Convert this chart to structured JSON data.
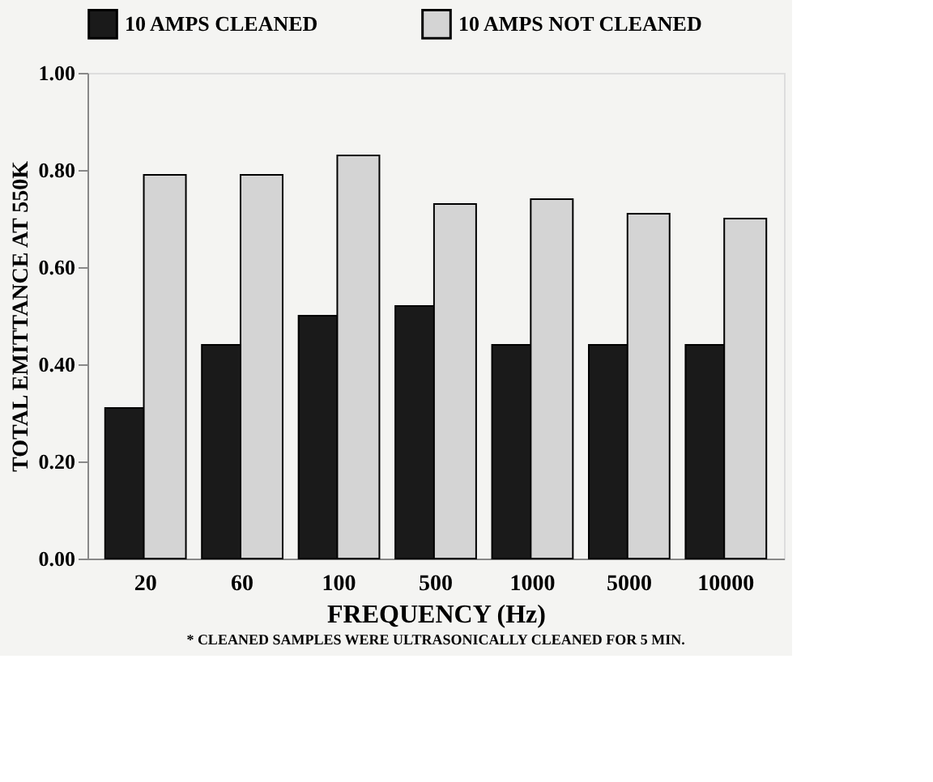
{
  "chart_data": {
    "type": "bar",
    "xlabel": "FREQUENCY (Hz)",
    "ylabel": "TOTAL EMITTANCE AT 550K",
    "categories": [
      "20",
      "60",
      "100",
      "500",
      "1000",
      "5000",
      "10000"
    ],
    "series": [
      {
        "name": "10 AMPS CLEANED",
        "color": "#1a1a1a",
        "values": [
          0.31,
          0.44,
          0.5,
          0.52,
          0.44,
          0.44,
          0.44
        ]
      },
      {
        "name": "10 AMPS NOT CLEANED",
        "color": "#d4d4d4",
        "values": [
          0.79,
          0.79,
          0.83,
          0.73,
          0.74,
          0.71,
          0.7
        ]
      }
    ],
    "ylim": [
      0,
      1
    ],
    "yticks": [
      {
        "value": 0,
        "label": "0.00"
      },
      {
        "value": 0.2,
        "label": "0.20"
      },
      {
        "value": 0.4,
        "label": "0.40"
      },
      {
        "value": 0.6,
        "label": "0.60"
      },
      {
        "value": 0.8,
        "label": "0.80"
      },
      {
        "value": 1,
        "label": "1.00"
      }
    ],
    "grid": false,
    "legend": "top",
    "annotations": [
      "* CLEANED SAMPLES WERE ULTRASONICALLY CLEANED FOR 5 MIN."
    ]
  }
}
